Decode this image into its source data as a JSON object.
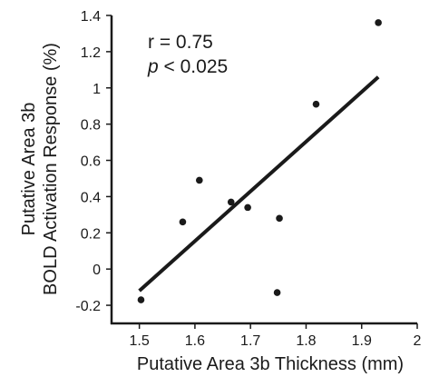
{
  "chart_data": {
    "type": "scatter",
    "xlabel": "Putative Area 3b Thickness (mm)",
    "ylabel_lines": [
      "Putative Area 3b",
      "BOLD Activation Response (%)"
    ],
    "xlim": [
      1.45,
      2.0
    ],
    "ylim": [
      -0.3,
      1.4
    ],
    "x_ticks": [
      1.5,
      1.6,
      1.7,
      1.8,
      1.9,
      2
    ],
    "x_tick_labels": [
      "1.5",
      "1.6",
      "1.7",
      "1.8",
      "1.9",
      "2"
    ],
    "y_ticks": [
      -0.2,
      0,
      0.2,
      0.4,
      0.6,
      0.8,
      1,
      1.2,
      1.4
    ],
    "y_tick_labels": [
      "-0.2",
      "0",
      "0.2",
      "0.4",
      "0.6",
      "0.8",
      "1",
      "1.2",
      "1.4"
    ],
    "points": [
      {
        "x": 1.503,
        "y": -0.17
      },
      {
        "x": 1.578,
        "y": 0.26
      },
      {
        "x": 1.608,
        "y": 0.49
      },
      {
        "x": 1.665,
        "y": 0.37
      },
      {
        "x": 1.695,
        "y": 0.34
      },
      {
        "x": 1.748,
        "y": -0.13
      },
      {
        "x": 1.752,
        "y": 0.28
      },
      {
        "x": 1.818,
        "y": 0.91
      },
      {
        "x": 1.93,
        "y": 1.36
      }
    ],
    "fit_line": {
      "x": [
        1.5,
        1.93
      ],
      "y": [
        -0.12,
        1.06
      ]
    },
    "annotations": {
      "r": "r = 0.75",
      "p_symbol": "p",
      "p_rest": " < 0.025"
    },
    "colors": {
      "points": "#1a1a1a",
      "line": "#1a1a1a",
      "axes": "#1a1a1a"
    }
  }
}
